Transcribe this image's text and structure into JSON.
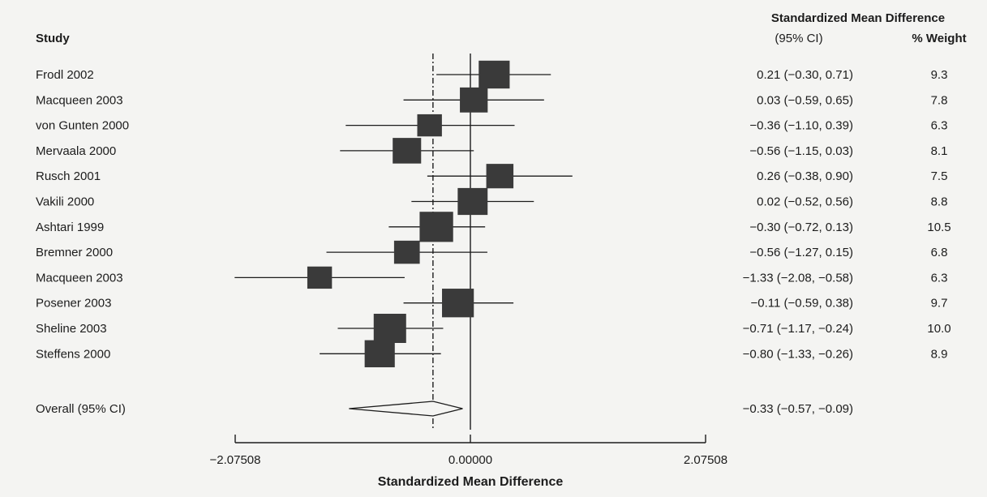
{
  "chart_data": {
    "type": "forest",
    "headers": {
      "study": "Study",
      "effect_title": "Standardized Mean Difference",
      "ci_title": "(95% CI)",
      "weight_title": "% Weight"
    },
    "xlabel": "Standardized Mean Difference",
    "x_ticks": [
      {
        "value": -2.07508,
        "label": "−2.07508"
      },
      {
        "value": 0.0,
        "label": "0.00000"
      },
      {
        "value": 2.07508,
        "label": "2.07508"
      }
    ],
    "xlim": [
      -2.07508,
      2.07508
    ],
    "null_line": 0,
    "overall_line": -0.33,
    "studies": [
      {
        "name": "Frodl 2002",
        "smd": 0.21,
        "lo": -0.3,
        "hi": 0.71,
        "ci_text": "0.21 (−0.30, 0.71)",
        "weight": "9.3"
      },
      {
        "name": "Macqueen 2003",
        "smd": 0.03,
        "lo": -0.59,
        "hi": 0.65,
        "ci_text": "0.03 (−0.59, 0.65)",
        "weight": "7.8"
      },
      {
        "name": "von Gunten 2000",
        "smd": -0.36,
        "lo": -1.1,
        "hi": 0.39,
        "ci_text": "−0.36 (−1.10, 0.39)",
        "weight": "6.3"
      },
      {
        "name": "Mervaala 2000",
        "smd": -0.56,
        "lo": -1.15,
        "hi": 0.03,
        "ci_text": "−0.56 (−1.15, 0.03)",
        "weight": "8.1"
      },
      {
        "name": "Rusch 2001",
        "smd": 0.26,
        "lo": -0.38,
        "hi": 0.9,
        "ci_text": "0.26 (−0.38, 0.90)",
        "weight": "7.5"
      },
      {
        "name": "Vakili 2000",
        "smd": 0.02,
        "lo": -0.52,
        "hi": 0.56,
        "ci_text": "0.02 (−0.52, 0.56)",
        "weight": "8.8"
      },
      {
        "name": "Ashtari 1999",
        "smd": -0.3,
        "lo": -0.72,
        "hi": 0.13,
        "ci_text": "−0.30 (−0.72, 0.13)",
        "weight": "10.5"
      },
      {
        "name": "Bremner 2000",
        "smd": -0.56,
        "lo": -1.27,
        "hi": 0.15,
        "ci_text": "−0.56 (−1.27, 0.15)",
        "weight": "6.8"
      },
      {
        "name": "Macqueen 2003",
        "smd": -1.33,
        "lo": -2.08,
        "hi": -0.58,
        "ci_text": "−1.33 (−2.08, −0.58)",
        "weight": "6.3"
      },
      {
        "name": "Posener 2003",
        "smd": -0.11,
        "lo": -0.59,
        "hi": 0.38,
        "ci_text": "−0.11 (−0.59, 0.38)",
        "weight": "9.7"
      },
      {
        "name": "Sheline 2003",
        "smd": -0.71,
        "lo": -1.17,
        "hi": -0.24,
        "ci_text": "−0.71 (−1.17, −0.24)",
        "weight": "10.0"
      },
      {
        "name": "Steffens 2000",
        "smd": -0.8,
        "lo": -1.33,
        "hi": -0.26,
        "ci_text": "−0.80 (−1.33, −0.26)",
        "weight": "8.9"
      }
    ],
    "overall": {
      "name": "Overall (95% CI)",
      "smd": -0.33,
      "lo": -0.57,
      "hi": -0.09,
      "ci_text": "−0.33 (−0.57, −0.09)"
    },
    "colors": {
      "marker": "#3a3a3a",
      "line": "#1c1c1c",
      "background": "#f4f4f2"
    }
  }
}
